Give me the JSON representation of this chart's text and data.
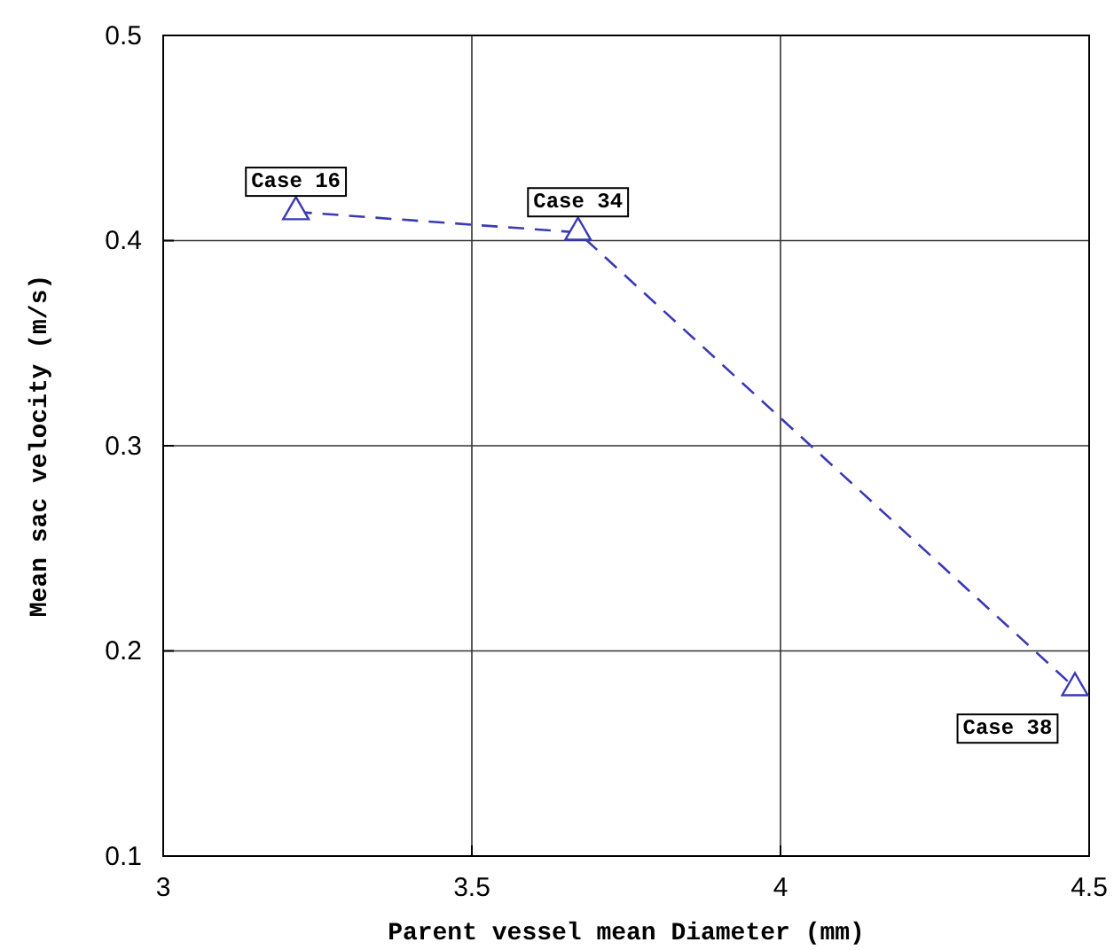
{
  "chart_data": {
    "type": "line",
    "xlabel": "Parent vessel mean Diameter (mm)",
    "ylabel": "Mean sac velocity (m/s)",
    "x": [
      3.215,
      3.672,
      4.477
    ],
    "series": [
      {
        "color": "#3a3ab4",
        "values": [
          0.414,
          0.404,
          0.182
        ]
      }
    ],
    "xlim": [
      3,
      4.5
    ],
    "xticks": [
      3,
      3.5,
      4,
      4.5
    ],
    "ylim": [
      0.1,
      0.5
    ],
    "yticks": [
      0.1,
      0.2,
      0.3,
      0.4,
      0.5
    ],
    "grid": true,
    "marker": "triangle",
    "line_style": "dashed",
    "annotations": [
      {
        "text": "Case 16",
        "x": 3.215,
        "y": 0.414
      },
      {
        "text": "Case 34",
        "x": 3.672,
        "y": 0.404
      },
      {
        "text": "Case 38",
        "x": 4.477,
        "y": 0.182
      }
    ]
  }
}
